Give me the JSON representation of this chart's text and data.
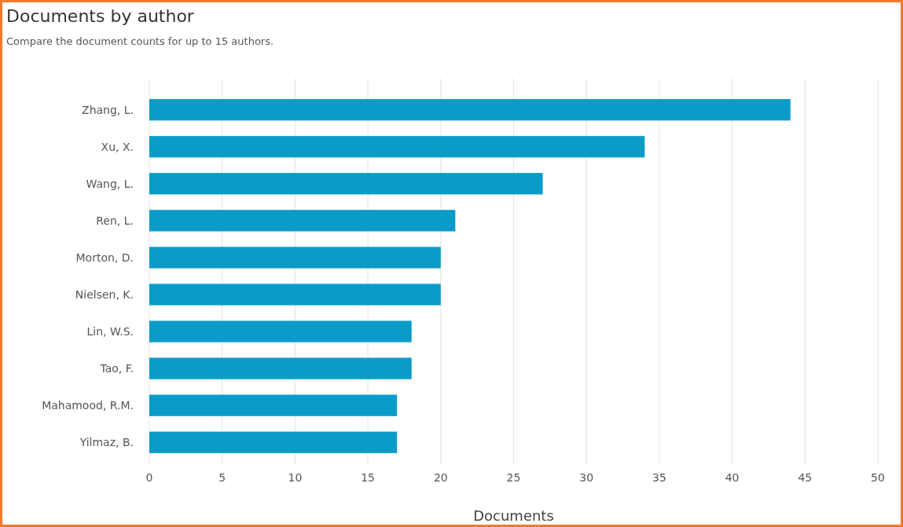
{
  "chart_data": {
    "type": "bar",
    "orientation": "horizontal",
    "title": "Documents by author",
    "subtitle": "Compare the document counts for up to 15 authors.",
    "xlabel": "Documents",
    "categories": [
      "Zhang, L.",
      "Xu, X.",
      "Wang, L.",
      "Ren, L.",
      "Morton, D.",
      "Nielsen, K.",
      "Lin, W.S.",
      "Tao, F.",
      "Mahamood, R.M.",
      "Yilmaz, B."
    ],
    "values": [
      44,
      34,
      27,
      21,
      20,
      20,
      18,
      18,
      17,
      17
    ],
    "color": "#0a9bc9",
    "xlim": [
      0,
      50
    ],
    "xticks": [
      0,
      5,
      10,
      15,
      20,
      25,
      30,
      35,
      40,
      45,
      50
    ],
    "grid": "x"
  }
}
